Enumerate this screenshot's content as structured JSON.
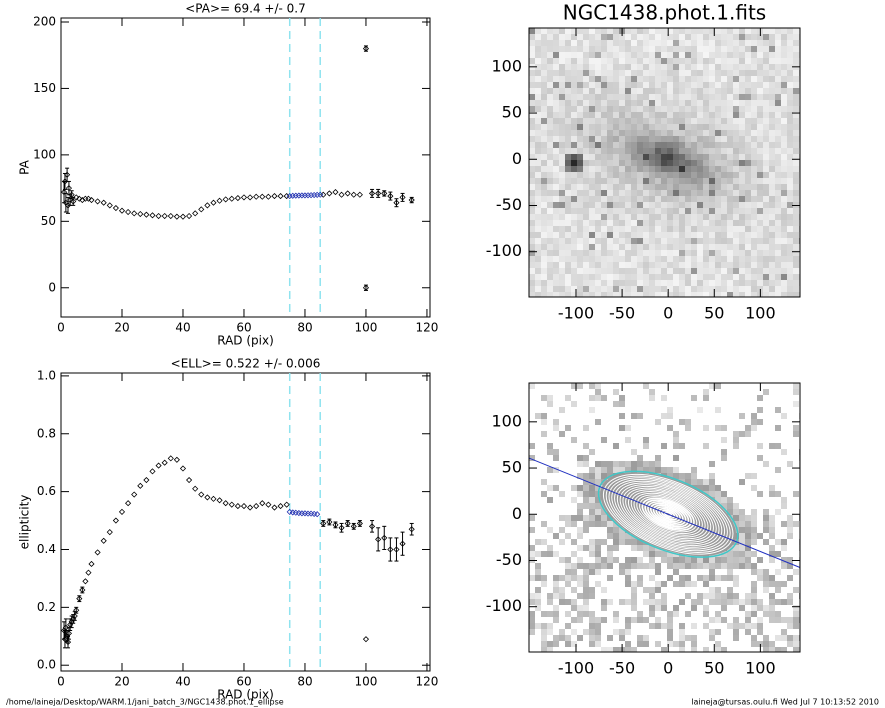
{
  "chart_data": [
    {
      "type": "scatter",
      "title": "<PA>=  69.4 +/-   0.7",
      "xlabel": "RAD (pix)",
      "ylabel": "PA",
      "xlim": [
        0,
        121
      ],
      "ylim": [
        -22,
        203
      ],
      "xticks": [
        0,
        20,
        40,
        60,
        80,
        100,
        120
      ],
      "yticks": [
        0,
        50,
        100,
        150,
        200
      ],
      "vlines": [
        75,
        85
      ],
      "vline_color": "#8fe3ef",
      "series": [
        {
          "color": "#000000",
          "x": [
            1,
            1.3,
            1.6,
            2,
            2.3,
            2.6,
            3,
            3.5,
            4,
            5,
            6,
            7,
            8,
            9,
            10,
            12,
            14,
            16,
            18,
            20,
            22,
            24,
            26,
            28,
            30,
            32,
            34,
            36,
            38,
            40,
            42,
            44,
            46,
            48,
            50,
            52,
            54,
            56,
            58,
            60,
            62,
            64,
            66,
            68,
            70,
            72,
            74,
            86,
            88,
            90,
            92,
            94,
            96,
            98,
            100,
            100,
            102,
            104,
            106,
            108,
            110,
            112,
            115
          ],
          "values": [
            72,
            80,
            64,
            85,
            62,
            75,
            66,
            70,
            65,
            68,
            67,
            66,
            67,
            67,
            66,
            65,
            64,
            62,
            60,
            58,
            57,
            56,
            55.5,
            55,
            54.5,
            54,
            54,
            54,
            53.5,
            53.5,
            54,
            56,
            59,
            62,
            64,
            65.5,
            66.5,
            67,
            67.5,
            68,
            68,
            68.5,
            68.5,
            68.5,
            69,
            69,
            69,
            70,
            71,
            72,
            70,
            71,
            70,
            70,
            180,
            0,
            71,
            71,
            71,
            69,
            64,
            68,
            66
          ],
          "errors": [
            8,
            6,
            7,
            5,
            6,
            5,
            4,
            3,
            3,
            0.5,
            0.5,
            0.5,
            0.5,
            0.5,
            0.5,
            0.5,
            0.5,
            0.5,
            0.5,
            0.5,
            0.5,
            0.5,
            0.5,
            0.5,
            0.5,
            0.5,
            0.5,
            0.5,
            0.5,
            0.5,
            0.5,
            0.5,
            0.5,
            0.5,
            0.5,
            0.5,
            0.5,
            0.5,
            0.5,
            0.5,
            0.5,
            0.5,
            0.5,
            0.5,
            0.5,
            0.5,
            0.5,
            1,
            1,
            1,
            1,
            1,
            1,
            1,
            2,
            2,
            3,
            3,
            2,
            3,
            3,
            3,
            2
          ]
        },
        {
          "color": "#1f2fb0",
          "x": [
            75,
            76,
            77,
            78,
            79,
            80,
            81,
            82,
            83,
            84,
            85
          ],
          "values": [
            69,
            69.2,
            69.3,
            69.4,
            69.5,
            69.5,
            69.6,
            69.7,
            69.8,
            69.9,
            70
          ],
          "errors": [
            0.3,
            0.3,
            0.3,
            0.3,
            0.3,
            0.3,
            0.3,
            0.3,
            0.3,
            0.3,
            0.3
          ]
        }
      ]
    },
    {
      "type": "scatter",
      "title": "<ELL>= 0.522 +/-  0.006",
      "xlabel": "RAD (pix)",
      "ylabel": "ellipticity",
      "xlim": [
        0,
        121
      ],
      "ylim": [
        -0.02,
        1.01
      ],
      "xticks": [
        0,
        20,
        40,
        60,
        80,
        100,
        120
      ],
      "yticks": [
        {
          "value": 0,
          "label": "0.0"
        },
        0.2,
        0.4,
        0.6,
        0.8,
        {
          "value": 1,
          "label": "1.0"
        }
      ],
      "vlines": [
        75,
        85
      ],
      "vline_color": "#8fe3ef",
      "series": [
        {
          "color": "#000000",
          "x": [
            1,
            1.3,
            1.6,
            2,
            2.3,
            2.6,
            3,
            3.5,
            4,
            4.5,
            5,
            6,
            7,
            8,
            9,
            10,
            12,
            14,
            16,
            18,
            20,
            22,
            24,
            26,
            28,
            30,
            32,
            34,
            36,
            38,
            40,
            42,
            44,
            46,
            48,
            50,
            52,
            54,
            56,
            58,
            60,
            62,
            64,
            66,
            68,
            70,
            72,
            74,
            86,
            88,
            90,
            92,
            94,
            96,
            98,
            100,
            102,
            104,
            106,
            108,
            110,
            112,
            115
          ],
          "values": [
            0.12,
            0.09,
            0.13,
            0.1,
            0.08,
            0.11,
            0.14,
            0.15,
            0.16,
            0.17,
            0.19,
            0.23,
            0.26,
            0.29,
            0.32,
            0.35,
            0.39,
            0.43,
            0.46,
            0.5,
            0.53,
            0.56,
            0.59,
            0.62,
            0.64,
            0.67,
            0.69,
            0.7,
            0.715,
            0.71,
            0.68,
            0.64,
            0.61,
            0.59,
            0.58,
            0.575,
            0.57,
            0.56,
            0.555,
            0.55,
            0.55,
            0.545,
            0.55,
            0.56,
            0.555,
            0.545,
            0.55,
            0.555,
            0.49,
            0.495,
            0.485,
            0.475,
            0.49,
            0.48,
            0.49,
            0.09,
            0.48,
            0.435,
            0.44,
            0.4,
            0.4,
            0.42,
            0.47
          ],
          "errors": [
            0.03,
            0.03,
            0.03,
            0.02,
            0.02,
            0.02,
            0.02,
            0.02,
            0.015,
            0.015,
            0.01,
            0.01,
            0.01,
            0.005,
            0.005,
            0.005,
            0.004,
            0.004,
            0.004,
            0.004,
            0.004,
            0.004,
            0.004,
            0.004,
            0.004,
            0.004,
            0.004,
            0.004,
            0.004,
            0.004,
            0.004,
            0.004,
            0.004,
            0.004,
            0.004,
            0.004,
            0.004,
            0.004,
            0.004,
            0.004,
            0.004,
            0.004,
            0.004,
            0.004,
            0.004,
            0.004,
            0.004,
            0.004,
            0.01,
            0.01,
            0.01,
            0.015,
            0.01,
            0.01,
            0.01,
            0.005,
            0.02,
            0.04,
            0.04,
            0.04,
            0.04,
            0.04,
            0.02
          ]
        },
        {
          "color": "#1f2fb0",
          "x": [
            75,
            76,
            77,
            78,
            79,
            80,
            81,
            82,
            83,
            84
          ],
          "values": [
            0.53,
            0.528,
            0.527,
            0.526,
            0.525,
            0.525,
            0.524,
            0.524,
            0.523,
            0.522
          ],
          "errors": [
            0.005,
            0.005,
            0.005,
            0.005,
            0.005,
            0.005,
            0.005,
            0.005,
            0.005,
            0.005
          ]
        }
      ]
    },
    {
      "type": "image",
      "title": "NGC1438.phot.1.fits",
      "style": "galaxy",
      "xlim": [
        -151,
        143
      ],
      "ylim": [
        -149,
        142
      ],
      "xticks": [
        -100,
        -50,
        0,
        50,
        100
      ],
      "yticks": [
        -100,
        -50,
        0,
        50,
        100
      ]
    },
    {
      "type": "image",
      "style": "contours",
      "xlim": [
        -151,
        143
      ],
      "ylim": [
        -149,
        142
      ],
      "xticks": [
        -100,
        -50,
        0,
        50,
        100
      ],
      "yticks": [
        -100,
        -50,
        0,
        50,
        100
      ]
    }
  ],
  "footer": {
    "left": "/home/laineja/Desktop/WARM.1/jani_batch_3/NGC1438.phot.1_ellipse",
    "right": "laineja@tursas.oulu.fi  Wed Jul  7 10:13:52 2010"
  }
}
